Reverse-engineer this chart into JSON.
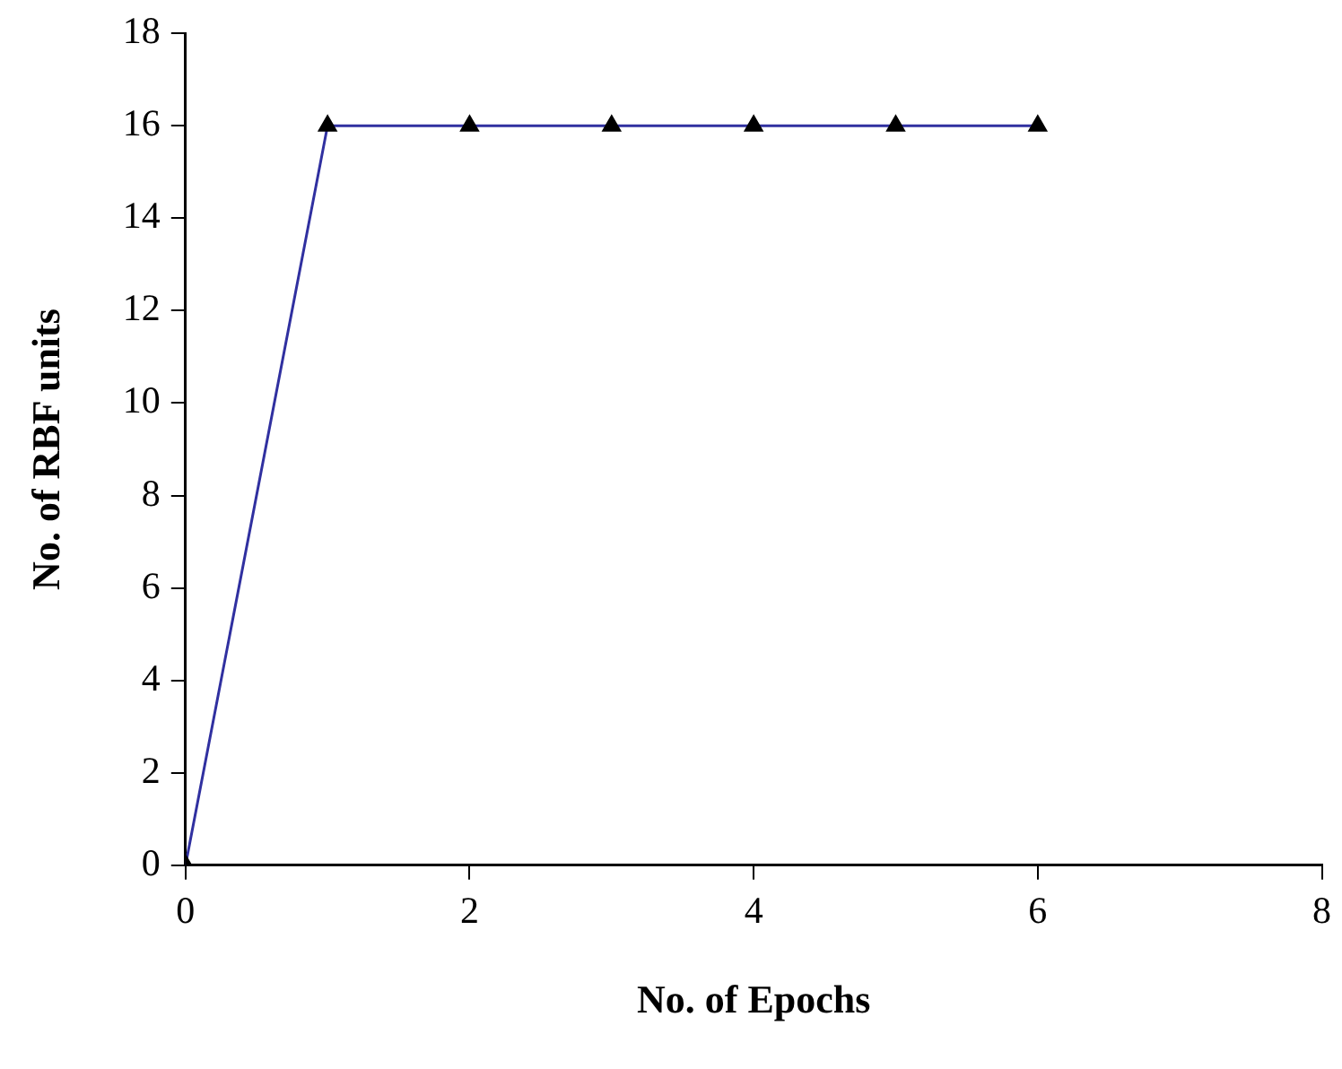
{
  "chart_data": {
    "type": "line",
    "xlabel": "No. of Epochs",
    "ylabel": "No. of RBF units",
    "x": [
      0,
      1,
      2,
      3,
      4,
      5,
      6
    ],
    "series": [
      {
        "color": "#3030a0",
        "values": [
          0,
          16,
          16,
          16,
          16,
          16,
          16
        ]
      }
    ],
    "xlim": [
      0,
      8
    ],
    "xticks": [
      0,
      2,
      4,
      6,
      8
    ],
    "ylim": [
      0,
      18
    ],
    "yticks": [
      0,
      2,
      4,
      6,
      8,
      10,
      12,
      14,
      16,
      18
    ],
    "grid": false,
    "legend": false,
    "marker": "triangle",
    "line_style": "solid"
  }
}
